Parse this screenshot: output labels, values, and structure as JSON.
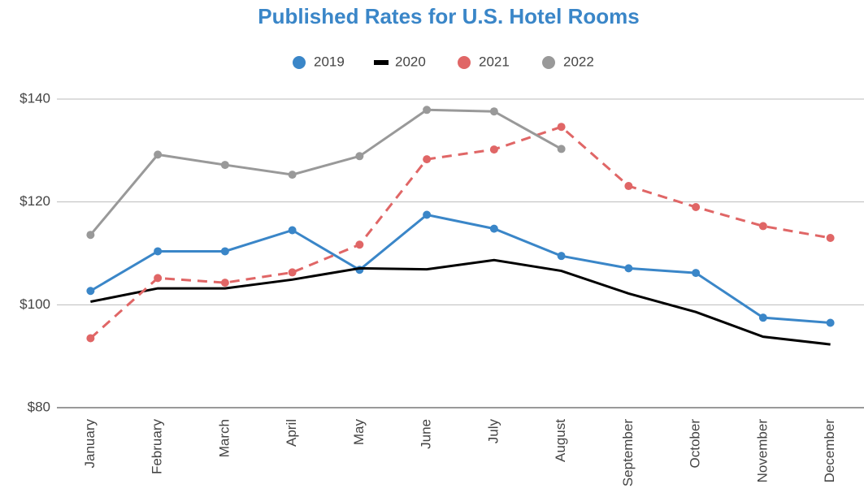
{
  "chart_data": {
    "type": "line",
    "title": "Published Rates for U.S. Hotel Rooms",
    "categories": [
      "January",
      "February",
      "March",
      "April",
      "May",
      "June",
      "July",
      "August",
      "September",
      "October",
      "November",
      "December"
    ],
    "series": [
      {
        "name": "2019",
        "color": "#3a86c8",
        "marker": true,
        "dashed": false,
        "values": [
          102.7,
          110.4,
          110.4,
          114.5,
          106.8,
          117.5,
          114.8,
          109.5,
          107.1,
          106.2,
          97.5,
          96.5
        ]
      },
      {
        "name": "2020",
        "color": "#000000",
        "marker": false,
        "dashed": false,
        "values": [
          100.6,
          103.2,
          103.2,
          104.9,
          107.1,
          106.9,
          108.7,
          106.6,
          102.2,
          98.6,
          93.8,
          92.3
        ]
      },
      {
        "name": "2021",
        "color": "#e06666",
        "marker": true,
        "dashed": true,
        "values": [
          93.5,
          105.2,
          104.3,
          106.3,
          111.7,
          128.3,
          130.2,
          134.6,
          123.1,
          119,
          115.3,
          113
        ]
      },
      {
        "name": "2022",
        "color": "#999999",
        "marker": true,
        "dashed": false,
        "values": [
          113.6,
          129.2,
          127.2,
          125.3,
          128.9,
          137.9,
          137.6,
          130.3,
          null,
          null,
          null,
          null
        ]
      }
    ],
    "ylim": [
      80,
      140
    ],
    "yticks": [
      {
        "value": 80,
        "label": "$80"
      },
      {
        "value": 100,
        "label": "$100"
      },
      {
        "value": 120,
        "label": "$120"
      },
      {
        "value": 140,
        "label": "$140"
      }
    ],
    "grid": true,
    "legend": "top"
  }
}
